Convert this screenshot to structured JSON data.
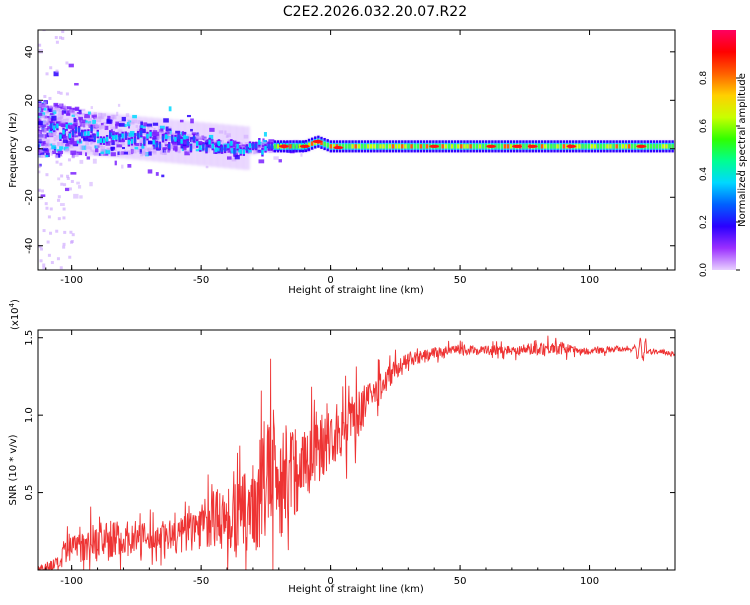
{
  "title": "C2E2.2026.032.20.07.R22",
  "chart_data": [
    {
      "type": "heatmap",
      "xlabel": "Height of straight line (km)",
      "ylabel": "Frequency (Hz)",
      "xlim": [
        -113,
        133
      ],
      "ylim": [
        -50,
        49
      ],
      "xticks": [
        -100,
        -50,
        0,
        50,
        100
      ],
      "yticks": [
        -40,
        -20,
        0,
        20,
        40
      ],
      "colorbar": {
        "label": "Normalized spectral amplitude",
        "range": [
          0,
          1
        ],
        "ticks": [
          "0.0",
          "0.2",
          "0.4",
          "0.6",
          "0.8"
        ],
        "colors": [
          "#e8d0ff",
          "#9b30ff",
          "#2a00ff",
          "#0060ff",
          "#00d8ff",
          "#00ff90",
          "#30ff00",
          "#c8ff00",
          "#ffd000",
          "#ff6000",
          "#ff0000",
          "#ff0060"
        ]
      },
      "ridge": {
        "x": [
          -110,
          -100,
          -90,
          -80,
          -70,
          -60,
          -50,
          -40,
          -30,
          -25,
          -20,
          -15,
          -10,
          -5,
          0,
          5,
          10,
          20,
          50,
          80,
          100,
          133
        ],
        "freq": [
          8,
          7,
          6,
          5,
          4,
          3,
          2,
          1,
          0,
          1,
          1,
          1,
          1,
          3,
          1,
          1,
          1,
          1,
          1,
          1,
          1,
          1
        ]
      }
    },
    {
      "type": "line",
      "xlabel": "Height of straight line (km)",
      "ylabel": "SNR (10 * v/v)",
      "ymultiplier": "(x10",
      "yexp": "4",
      "ymultiplier_close": ")",
      "xlim": [
        -113,
        133
      ],
      "ylim": [
        0,
        15500
      ],
      "xticks": [
        -100,
        -50,
        0,
        50,
        100
      ],
      "yticks": [
        {
          "value": 5000,
          "label": "0.5"
        },
        {
          "value": 10000,
          "label": "1.0"
        },
        {
          "value": 15000,
          "label": "1.5"
        }
      ],
      "color": "#ee3333",
      "series": [
        {
          "name": "SNR",
          "x": [
            -113,
            -105,
            -100,
            -95,
            -90,
            -85,
            -80,
            -75,
            -70,
            -65,
            -60,
            -55,
            -50,
            -45,
            -40,
            -35,
            -30,
            -27,
            -25,
            -22,
            -20,
            -17,
            -15,
            -12,
            -10,
            -5,
            0,
            5,
            10,
            15,
            20,
            25,
            30,
            40,
            50,
            60,
            70,
            80,
            85,
            90,
            95,
            100,
            105,
            110,
            115,
            120,
            125,
            133
          ],
          "base": [
            100,
            400,
            1500,
            1800,
            1900,
            2000,
            2000,
            2100,
            2000,
            2200,
            2100,
            2500,
            3000,
            3300,
            3300,
            3500,
            4000,
            5000,
            6000,
            6000,
            6000,
            6000,
            6500,
            6500,
            7000,
            8000,
            8500,
            9000,
            10000,
            11000,
            12000,
            13000,
            13500,
            14000,
            14200,
            14200,
            14200,
            14300,
            14400,
            14300,
            14200,
            14100,
            14200,
            14300,
            14300,
            14200,
            14100,
            14000
          ],
          "noise": [
            300,
            600,
            1500,
            1500,
            1500,
            1500,
            1500,
            1400,
            1200,
            1400,
            1500,
            1800,
            2000,
            2400,
            2800,
            3000,
            3500,
            5000,
            5000,
            5500,
            5000,
            4500,
            4000,
            3500,
            3300,
            3000,
            2500,
            2200,
            2000,
            1500,
            1200,
            800,
            600,
            500,
            400,
            400,
            400,
            500,
            600,
            500,
            300,
            250,
            250,
            250,
            250,
            250,
            250,
            200
          ]
        }
      ]
    }
  ]
}
